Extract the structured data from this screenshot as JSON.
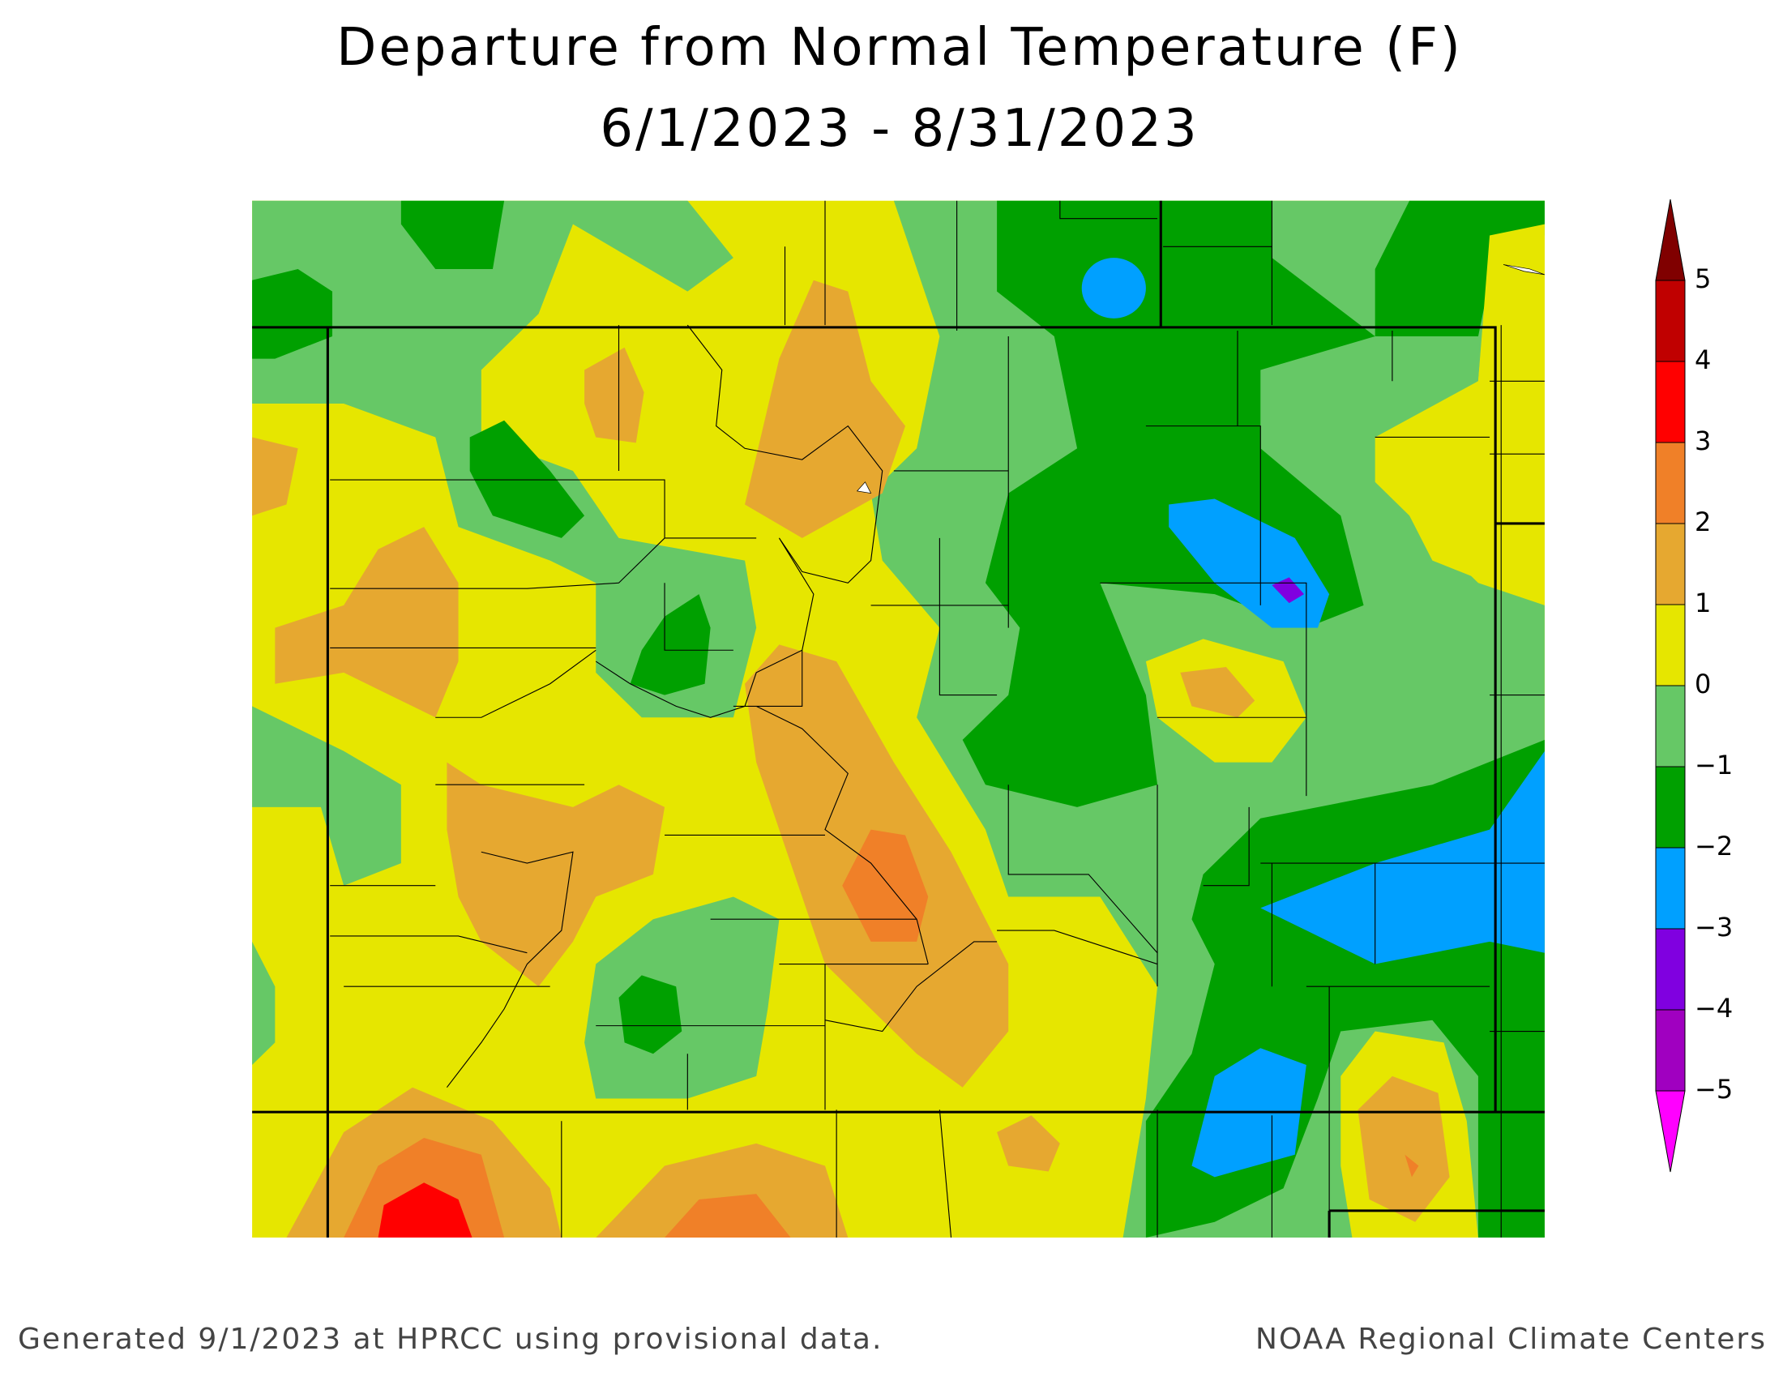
{
  "header": {
    "title": "Departure from Normal Temperature (F)",
    "subtitle": "6/1/2023 - 8/31/2023"
  },
  "legend": {
    "labels": [
      "5",
      "4",
      "3",
      "2",
      "1",
      "0",
      "−1",
      "−2",
      "−3",
      "−4",
      "−5"
    ],
    "colors": [
      "#800000",
      "#c00000",
      "#ff0000",
      "#f08028",
      "#e6a830",
      "#e6e600",
      "#66c866",
      "#00a000",
      "#00a0ff",
      "#8000e0",
      "#a000c0",
      "#ff00ff"
    ]
  },
  "footer": {
    "left": "Generated 9/1/2023 at HPRCC using provisional data.",
    "right": "NOAA Regional Climate Centers"
  }
}
